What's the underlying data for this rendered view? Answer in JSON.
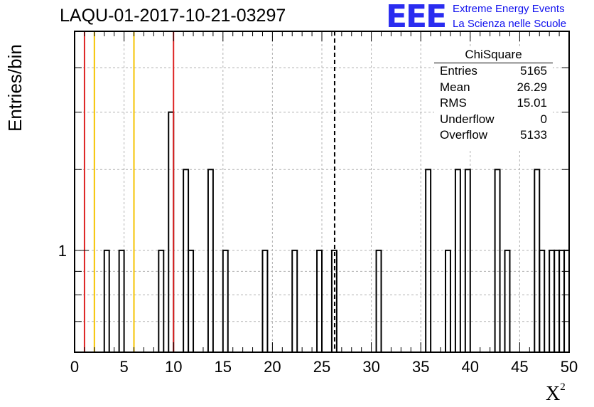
{
  "header": {
    "title": "LAQU-01-2017-10-21-03297",
    "logo_mark": "EEE",
    "logo_line1": "Extreme Energy Events",
    "logo_line2": "La Scienza nelle Scuole"
  },
  "stats_box": {
    "title": "ChiSquare",
    "rows": [
      {
        "label": "Entries",
        "value": "5165"
      },
      {
        "label": "Mean",
        "value": "26.29"
      },
      {
        "label": "RMS",
        "value": "15.01"
      },
      {
        "label": "Underflow",
        "value": "0"
      },
      {
        "label": "Overflow",
        "value": "5133"
      }
    ]
  },
  "colors": {
    "red_line": "#dd2222",
    "yellow_line": "#f5c400",
    "histogram": "#000000",
    "grid": "#b0b0b0"
  },
  "chart_data": {
    "type": "bar",
    "xlabel": "X²",
    "ylabel": "Entries/bin",
    "xlim": [
      0,
      50
    ],
    "ylim": [
      0.6,
      3.0
    ],
    "y_scale": "log",
    "grid": true,
    "bin_width": 0.5,
    "x_ticks": [
      "0",
      "5",
      "10",
      "15",
      "20",
      "25",
      "30",
      "35",
      "40",
      "45",
      "50"
    ],
    "y_ticks": [
      "1"
    ],
    "bins": [
      {
        "x": 3.0,
        "value": 1
      },
      {
        "x": 4.5,
        "value": 1
      },
      {
        "x": 8.5,
        "value": 1
      },
      {
        "x": 9.5,
        "value": 2
      },
      {
        "x": 11.0,
        "value": 1.5
      },
      {
        "x": 11.5,
        "value": 1
      },
      {
        "x": 13.5,
        "value": 1.5
      },
      {
        "x": 15.0,
        "value": 1
      },
      {
        "x": 19.0,
        "value": 1
      },
      {
        "x": 22.0,
        "value": 1
      },
      {
        "x": 24.5,
        "value": 1
      },
      {
        "x": 26.0,
        "value": 1
      },
      {
        "x": 30.5,
        "value": 1
      },
      {
        "x": 35.5,
        "value": 1.5
      },
      {
        "x": 37.5,
        "value": 1
      },
      {
        "x": 38.5,
        "value": 1.5
      },
      {
        "x": 39.5,
        "value": 1.5
      },
      {
        "x": 42.5,
        "value": 1.5
      },
      {
        "x": 43.5,
        "value": 1
      },
      {
        "x": 46.5,
        "value": 1.5
      },
      {
        "x": 47.0,
        "value": 1
      },
      {
        "x": 48.0,
        "value": 1
      },
      {
        "x": 48.5,
        "value": 1
      },
      {
        "x": 49.0,
        "value": 1
      },
      {
        "x": 49.5,
        "value": 1
      }
    ],
    "vertical_lines": [
      {
        "x": 1,
        "color": "red"
      },
      {
        "x": 2,
        "color": "yellow"
      },
      {
        "x": 6,
        "color": "yellow"
      },
      {
        "x": 10,
        "color": "red"
      },
      {
        "x": 26.29,
        "color": "black",
        "style": "dashed"
      }
    ]
  }
}
